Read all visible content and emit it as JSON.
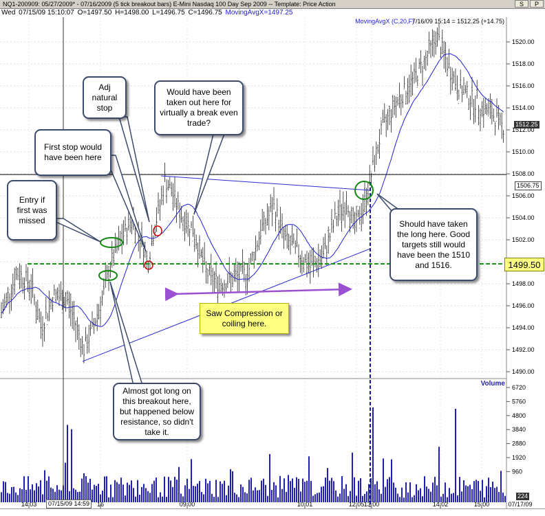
{
  "window": {
    "title": "NQ1-200909:  05/27/2009* - 07/16/2009  (5 tick breakout bars)  E-Mini Nasdaq 100 Day Sep 2009  --  Template: Price Action",
    "btn_s": "S",
    "btn_p": "P"
  },
  "infobar": {
    "day": "Wed",
    "datetime": "07/15/09 15:10:07",
    "open": "O=1497.50",
    "high": "H=1498.00",
    "low": "L=1496.75",
    "close": "C=1496.75",
    "ma": "MovingAvgX=1497.25"
  },
  "chart_header": {
    "ma_label": "MovingAvgX (C,20,F)",
    "stamp": "7/16/09 15:14 = 1512.25 (+14.75)"
  },
  "price_axis": {
    "ticks": [
      "1520.00",
      "1518.00",
      "1516.00",
      "1514.00",
      "1512.00",
      "1510.00",
      "1508.00",
      "1506.00",
      "1504.00",
      "1502.00",
      "1500.00",
      "1498.00",
      "1496.00",
      "1494.00",
      "1492.00",
      "1490.00"
    ],
    "last_price": "1512.25",
    "line_price": "1506.75",
    "level_label": "1499.50"
  },
  "volume_axis": {
    "label": "Volume",
    "ticks": [
      "6720",
      "5760",
      "4800",
      "3840",
      "2880",
      "1920",
      "960"
    ],
    "current": "224"
  },
  "time_axis": {
    "ticks": [
      "14:03",
      "16",
      "09:00",
      "10:01",
      "12:05",
      "13:00",
      "14:02",
      "15:00",
      "07/17/09"
    ],
    "cursor_tag": "07/15/09 14:59"
  },
  "annotations": {
    "entry": "Entry if first was missed",
    "first_stop": "First stop would have been here",
    "adj_stop": "Adj natural stop",
    "taken_out": "Would have been taken out here for virtually a break even trade?",
    "should_long": "Should have taken the long here.  Good targets still would have been the 1510 and 1516.",
    "compression": "Saw Compression or coiling here.",
    "almost_long": "Almost got long on this breakout here, but happened below resistance, so didn't take it."
  },
  "colors": {
    "price_bar": "#222222",
    "ma": "#1f1fd9",
    "volume": "#1f1fb0",
    "level": "#119911",
    "arrow": "#9b4fd1",
    "callout_border": "#3b4a6b",
    "yellow": "#ffff80"
  }
}
